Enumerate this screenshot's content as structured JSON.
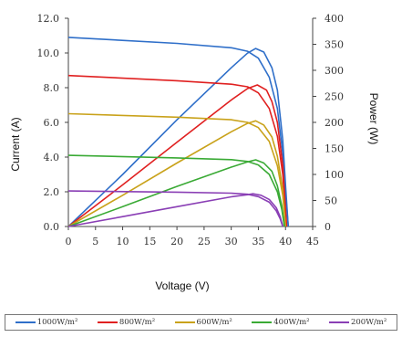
{
  "chart_data": {
    "type": "line",
    "xlabel": "Voltage (V)",
    "ylabel_left": "Current (A)",
    "ylabel_right": "Power (W)",
    "xlim": [
      0,
      45
    ],
    "ylim_left": [
      0,
      12
    ],
    "ylim_right": [
      0,
      400
    ],
    "x_ticks": [
      "0",
      "5",
      "10",
      "15",
      "20",
      "25",
      "30",
      "35",
      "40",
      "45"
    ],
    "y_left_ticks": [
      "0.0",
      "2.0",
      "4.0",
      "6.0",
      "8.0",
      "10.0",
      "12.0"
    ],
    "y_right_ticks": [
      "0",
      "50",
      "100",
      "150",
      "200",
      "250",
      "300",
      "350",
      "400"
    ],
    "grid": false,
    "legend_position": "bottom",
    "series": [
      {
        "name": "1000W/m²",
        "color": "#2f6fc9",
        "isc": 10.9,
        "voc": 40.5,
        "pmax_v": 34.5,
        "pmax": 342,
        "iv": [
          [
            0,
            10.9
          ],
          [
            20,
            10.55
          ],
          [
            30,
            10.3
          ],
          [
            33,
            10.1
          ],
          [
            35,
            9.7
          ],
          [
            37,
            8.6
          ],
          [
            38.5,
            6.8
          ],
          [
            39.5,
            4.2
          ],
          [
            40,
            2.0
          ],
          [
            40.5,
            0
          ]
        ],
        "pv": [
          [
            0,
            0
          ],
          [
            10,
            100
          ],
          [
            20,
            205
          ],
          [
            30,
            305
          ],
          [
            33,
            333
          ],
          [
            34.5,
            342
          ],
          [
            36,
            335
          ],
          [
            37.5,
            305
          ],
          [
            38.5,
            262
          ],
          [
            39.5,
            166
          ],
          [
            40,
            80
          ],
          [
            40.5,
            0
          ]
        ]
      },
      {
        "name": "800W/m²",
        "color": "#e02020",
        "isc": 8.7,
        "voc": 40.2,
        "pmax_v": 34.8,
        "pmax": 272,
        "iv": [
          [
            0,
            8.7
          ],
          [
            20,
            8.4
          ],
          [
            30,
            8.2
          ],
          [
            33,
            8.05
          ],
          [
            35,
            7.7
          ],
          [
            37,
            6.8
          ],
          [
            38.5,
            5.2
          ],
          [
            39.5,
            3.0
          ],
          [
            40.2,
            0
          ]
        ],
        "pv": [
          [
            0,
            0
          ],
          [
            10,
            80
          ],
          [
            20,
            162
          ],
          [
            30,
            243
          ],
          [
            33,
            265
          ],
          [
            34.8,
            272
          ],
          [
            36.5,
            262
          ],
          [
            37.5,
            240
          ],
          [
            38.5,
            200
          ],
          [
            39.5,
            118
          ],
          [
            40.2,
            0
          ]
        ]
      },
      {
        "name": "600W/m²",
        "color": "#c9a21a",
        "isc": 6.5,
        "voc": 40.0,
        "pmax_v": 34.5,
        "pmax": 203,
        "iv": [
          [
            0,
            6.5
          ],
          [
            20,
            6.3
          ],
          [
            30,
            6.15
          ],
          [
            33,
            6.0
          ],
          [
            35,
            5.7
          ],
          [
            37,
            4.9
          ],
          [
            38.5,
            3.5
          ],
          [
            39.5,
            1.8
          ],
          [
            40,
            0
          ]
        ],
        "pv": [
          [
            0,
            0
          ],
          [
            10,
            60
          ],
          [
            20,
            122
          ],
          [
            30,
            182
          ],
          [
            33,
            198
          ],
          [
            34.5,
            203
          ],
          [
            36,
            195
          ],
          [
            37.5,
            172
          ],
          [
            38.5,
            135
          ],
          [
            39.5,
            72
          ],
          [
            40,
            0
          ]
        ]
      },
      {
        "name": "400W/m²",
        "color": "#3aaa35",
        "isc": 4.1,
        "voc": 39.8,
        "pmax_v": 34.5,
        "pmax": 128,
        "iv": [
          [
            0,
            4.1
          ],
          [
            20,
            3.95
          ],
          [
            30,
            3.85
          ],
          [
            33,
            3.75
          ],
          [
            35,
            3.55
          ],
          [
            37,
            3.0
          ],
          [
            38.5,
            2.0
          ],
          [
            39.3,
            1.0
          ],
          [
            39.8,
            0
          ]
        ],
        "pv": [
          [
            0,
            0
          ],
          [
            10,
            38
          ],
          [
            20,
            77
          ],
          [
            30,
            114
          ],
          [
            33,
            124
          ],
          [
            34.5,
            128
          ],
          [
            36,
            122
          ],
          [
            37.5,
            106
          ],
          [
            38.5,
            78
          ],
          [
            39.3,
            40
          ],
          [
            39.8,
            0
          ]
        ]
      },
      {
        "name": "200W/m²",
        "color": "#8a3fb5",
        "isc": 2.05,
        "voc": 39.5,
        "pmax_v": 34.0,
        "pmax": 63,
        "iv": [
          [
            0,
            2.05
          ],
          [
            20,
            1.98
          ],
          [
            30,
            1.92
          ],
          [
            33,
            1.86
          ],
          [
            35,
            1.72
          ],
          [
            37,
            1.4
          ],
          [
            38.3,
            0.9
          ],
          [
            39,
            0.45
          ],
          [
            39.5,
            0
          ]
        ],
        "pv": [
          [
            0,
            0
          ],
          [
            10,
            19
          ],
          [
            20,
            38
          ],
          [
            30,
            57
          ],
          [
            33,
            61
          ],
          [
            34,
            63
          ],
          [
            35.5,
            60
          ],
          [
            37,
            52
          ],
          [
            38.3,
            36
          ],
          [
            39,
            19
          ],
          [
            39.5,
            0
          ]
        ]
      }
    ]
  }
}
